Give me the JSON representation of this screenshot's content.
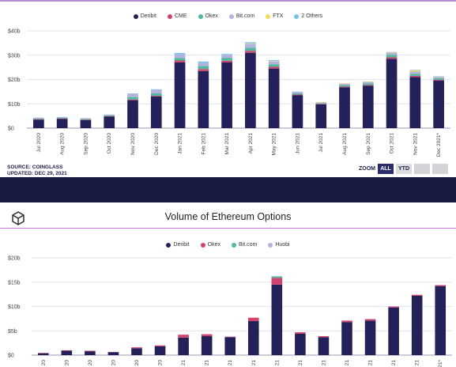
{
  "charts": [
    {
      "legend": [
        {
          "name": "Deribit",
          "color": "#24215a"
        },
        {
          "name": "CME",
          "color": "#d1436f"
        },
        {
          "name": "Okex",
          "color": "#4fb99f"
        },
        {
          "name": "Bit.com",
          "color": "#b4b2dc"
        },
        {
          "name": "FTX",
          "color": "#f0dc5a"
        },
        {
          "name": "2 Others",
          "color": "#7ec2ea"
        }
      ],
      "footer": {
        "source": "SOURCE: COINGLASS",
        "updated": "UPDATED: DEC 29, 2021"
      },
      "zoom": {
        "label": "ZOOM",
        "all": "ALL",
        "ytd": "YTD"
      }
    },
    {
      "title": "Volume of Ethereum Options",
      "legend": [
        {
          "name": "Deribit",
          "color": "#24215a"
        },
        {
          "name": "Okex",
          "color": "#d1436f"
        },
        {
          "name": "Bit.com",
          "color": "#4fb99f"
        },
        {
          "name": "Huobi",
          "color": "#b4b2dc"
        }
      ],
      "logo_icon": "the-block-cube-logo"
    }
  ],
  "chart_data": [
    {
      "type": "bar",
      "stacked": true,
      "categories": [
        "Jul 2020",
        "Aug 2020",
        "Sep 2020",
        "Oct 2020",
        "Nov 2020",
        "Dec 2020",
        "Jan 2021",
        "Feb 2021",
        "Mar 2021",
        "Apr 2021",
        "May 2021",
        "Jun 2021",
        "Jul 2021",
        "Aug 2021",
        "Sep 2021",
        "Oct 2021",
        "Nov 2021",
        "Dec 2021*"
      ],
      "series": [
        {
          "name": "Deribit",
          "color": "#24215a",
          "values": [
            3.5,
            3.8,
            3.3,
            4.8,
            11.5,
            13,
            27,
            23.5,
            27,
            31,
            24.5,
            13.5,
            9.8,
            16.8,
            17.5,
            28.5,
            21,
            19.5
          ]
        },
        {
          "name": "CME",
          "color": "#d1436f",
          "values": [
            0.1,
            0.1,
            0.1,
            0.1,
            0.3,
            0.3,
            0.8,
            0.8,
            0.7,
            0.8,
            0.7,
            0.3,
            0.2,
            0.3,
            0.3,
            0.6,
            0.5,
            0.4
          ]
        },
        {
          "name": "Okex",
          "color": "#4fb99f",
          "values": [
            0.3,
            0.3,
            0.3,
            0.3,
            1,
            1,
            1,
            1.2,
            1.2,
            1.2,
            1,
            0.5,
            0.3,
            0.6,
            0.6,
            1,
            0.8,
            0.6
          ]
        },
        {
          "name": "Bit.com",
          "color": "#b4b2dc",
          "values": [
            0.4,
            0.4,
            0.4,
            0.4,
            1.3,
            1.4,
            1.5,
            1.3,
            1.2,
            1.5,
            1.2,
            0.6,
            0.3,
            0.6,
            0.7,
            0.8,
            1,
            0.6
          ]
        },
        {
          "name": "FTX",
          "color": "#f0dc5a",
          "values": [
            0,
            0,
            0,
            0,
            0,
            0,
            0,
            0,
            0,
            0.2,
            0.2,
            0,
            0.1,
            0.1,
            0.1,
            0.2,
            0.5,
            0.1
          ]
        },
        {
          "name": "2 Others",
          "color": "#7ec2ea",
          "values": [
            0,
            0,
            0,
            0,
            0.2,
            0.3,
            0.6,
            0.6,
            0.4,
            0.6,
            0.4,
            0.1,
            0,
            0,
            0,
            0.2,
            0.2,
            0.1
          ]
        }
      ],
      "yticks": [
        "$0",
        "$10b",
        "$20b",
        "$30b",
        "$40b"
      ],
      "ylim": [
        0,
        40
      ]
    },
    {
      "type": "bar",
      "stacked": true,
      "categories": [
        "Jul 2020",
        "Aug 2020",
        "Sep 2020",
        "Oct 2020",
        "Nov 2020",
        "Dec 2020",
        "Jan 2021",
        "Feb 2021",
        "Mar 2021",
        "Apr 2021",
        "May 2021",
        "Jun 2021",
        "Jul 2021",
        "Aug 2021",
        "Sep 2021",
        "Oct 2021",
        "Nov 2021",
        "Dec 2021*"
      ],
      "xtick_labels": [
        "20",
        "20",
        "20",
        "20",
        "20",
        "20",
        "21",
        "21",
        "21",
        "21",
        "21",
        "21",
        "21",
        "21",
        "21",
        "21",
        "21",
        "21*"
      ],
      "series": [
        {
          "name": "Deribit",
          "color": "#24215a",
          "values": [
            0.4,
            0.9,
            0.8,
            0.6,
            1.4,
            1.8,
            3.6,
            3.9,
            3.7,
            7,
            14.5,
            4.4,
            3.7,
            6.8,
            7.1,
            9.8,
            12.2,
            14.2
          ]
        },
        {
          "name": "Okex",
          "color": "#d1436f",
          "values": [
            0.05,
            0.1,
            0.1,
            0.05,
            0.2,
            0.2,
            0.6,
            0.4,
            0.1,
            0.7,
            1.4,
            0.3,
            0.2,
            0.3,
            0.3,
            0.2,
            0.2,
            0.2
          ]
        },
        {
          "name": "Bit.com",
          "color": "#4fb99f",
          "values": [
            0,
            0,
            0,
            0,
            0,
            0,
            0,
            0,
            0,
            0,
            0.3,
            0,
            0,
            0,
            0,
            0,
            0,
            0
          ]
        },
        {
          "name": "Huobi",
          "color": "#b4b2dc",
          "values": [
            0,
            0,
            0,
            0,
            0,
            0,
            0,
            0,
            0,
            0,
            0,
            0,
            0,
            0,
            0,
            0,
            0,
            0
          ]
        }
      ],
      "yticks": [
        "$0",
        "$5b",
        "$10b",
        "$15b",
        "$20b"
      ],
      "ylim": [
        0,
        20
      ]
    }
  ]
}
